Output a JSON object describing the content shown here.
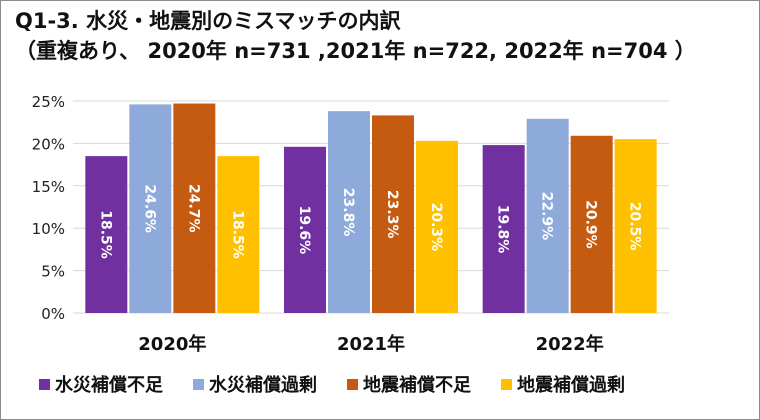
{
  "chart_data": {
    "type": "bar",
    "title": "Q1-3. 水災・地震別のミスマッチの内訳",
    "subtitle": "（重複あり、 2020年 n=731 ,2021年 n=722, 2022年 n=704 ）",
    "categories": [
      "2020年",
      "2021年",
      "2022年"
    ],
    "series": [
      {
        "name": "水災補償不足",
        "color": "#7030a0",
        "values": [
          18.5,
          19.6,
          19.8
        ],
        "labels": [
          "18.5%",
          "19.6%",
          "19.8%"
        ]
      },
      {
        "name": "水災補償過剰",
        "color": "#8eaadb",
        "values": [
          24.6,
          23.8,
          22.9
        ],
        "labels": [
          "24.6%",
          "23.8%",
          "22.9%"
        ]
      },
      {
        "name": "地震補償不足",
        "color": "#c55a11",
        "values": [
          24.7,
          23.3,
          20.9
        ],
        "labels": [
          "24.7%",
          "23.3%",
          "20.9%"
        ]
      },
      {
        "name": "地震補償過剰",
        "color": "#ffc000",
        "values": [
          18.5,
          20.3,
          20.5
        ],
        "labels": [
          "18.5%",
          "20.3%",
          "20.5%"
        ]
      }
    ],
    "ylim": [
      0,
      25
    ],
    "yticks": [
      "0%",
      "5%",
      "10%",
      "15%",
      "20%",
      "25%"
    ],
    "ytick_values": [
      0,
      5,
      10,
      15,
      20,
      25
    ],
    "grid": true,
    "legend_position": "bottom"
  }
}
